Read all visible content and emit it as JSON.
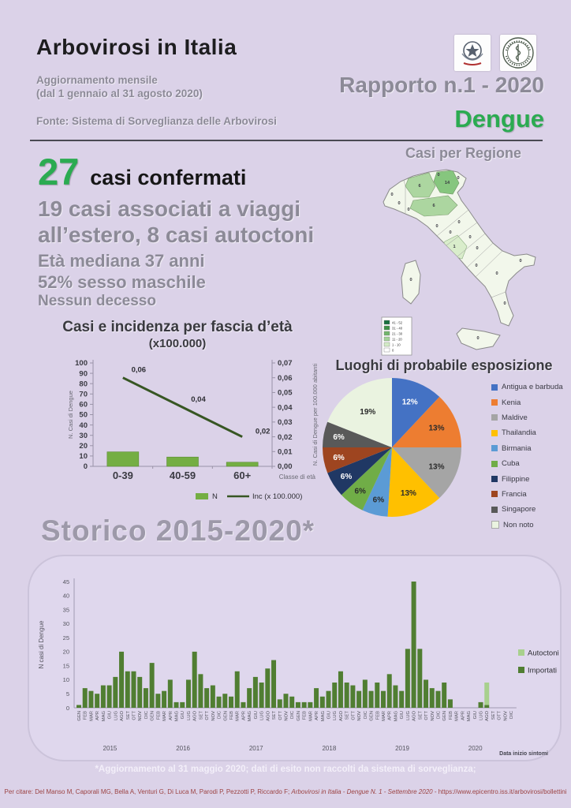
{
  "colors": {
    "background": "#DBD2E8",
    "accent_green": "#2BAB51",
    "gray_text": "#8C8A97",
    "dark_text": "#1D1D1F",
    "age_bar_green": "#74AE43",
    "incidence_line": "#375623",
    "importati_green": "#507E32",
    "autoctoni_green": "#A8D08D",
    "citation_red": "#9C4343"
  },
  "header": {
    "title": "Arbovirosi in Italia",
    "subtitle_line1": "Aggiornamento mensile",
    "subtitle_line2": "(dal 1 gennaio al 31 agosto 2020)",
    "fonte": "Fonte: Sistema di Sorveglianza delle Arbovirosi",
    "report_no": "Rapporto n.1 - 2020",
    "disease": "Dengue",
    "logos": [
      "Ministero della Salute",
      "Istituto Superiore di Sanità"
    ]
  },
  "summary": {
    "confirmed_count": "27",
    "confirmed_label": "casi confermati",
    "detail": "19 casi associati a viaggi all’estero, 8 casi autoctoni",
    "median_age": "Età mediana 37 anni",
    "sex": "52% sesso maschile",
    "deaths": "Nessun decesso"
  },
  "map": {
    "title": "Casi per Regione",
    "regions": [
      {
        "name": "Valle d'Aosta",
        "value": 0
      },
      {
        "name": "Piemonte",
        "value": 0
      },
      {
        "name": "Lombardia",
        "value": 6
      },
      {
        "name": "Trentino-Alto Adige",
        "value": 0
      },
      {
        "name": "Veneto",
        "value": 14
      },
      {
        "name": "Friuli-Venezia Giulia",
        "value": 0
      },
      {
        "name": "Liguria",
        "value": 0
      },
      {
        "name": "Emilia-Romagna",
        "value": 6
      },
      {
        "name": "Toscana",
        "value": 0
      },
      {
        "name": "Umbria",
        "value": 0
      },
      {
        "name": "Marche",
        "value": 0
      },
      {
        "name": "Lazio",
        "value": 1
      },
      {
        "name": "Abruzzo",
        "value": 0
      },
      {
        "name": "Molise",
        "value": 0
      },
      {
        "name": "Campania",
        "value": 0
      },
      {
        "name": "Puglia",
        "value": 0
      },
      {
        "name": "Basilicata",
        "value": 0
      },
      {
        "name": "Calabria",
        "value": 0
      },
      {
        "name": "Sicilia",
        "value": 0
      },
      {
        "name": "Sardegna",
        "value": 0
      }
    ],
    "legend": [
      {
        "label": "41 - 52",
        "color": "#17703E"
      },
      {
        "label": "31 - 40",
        "color": "#3D9246"
      },
      {
        "label": "21 - 30",
        "color": "#71B56B"
      },
      {
        "label": "11 - 20",
        "color": "#A3D398"
      },
      {
        "label": "1 - 10",
        "color": "#D3EBC6"
      },
      {
        "label": "0",
        "color": "#FFFFFF"
      }
    ]
  },
  "chart_data": [
    {
      "id": "age_incidence",
      "type": "bar",
      "title": "Casi e incidenza per fascia d’età",
      "subtitle": "(x100.000)",
      "categories": [
        "0-39",
        "40-59",
        "60+"
      ],
      "series": [
        {
          "name": "N",
          "kind": "bar",
          "axis": "left",
          "color": "#74AE43",
          "values": [
            14,
            9,
            4
          ]
        },
        {
          "name": "Inc (x 100.000)",
          "kind": "line",
          "axis": "right",
          "color": "#375623",
          "values": [
            0.06,
            0.04,
            0.02
          ],
          "point_labels": [
            "0,06",
            "0,04",
            "0,02"
          ]
        }
      ],
      "xlabel": "Classe di età",
      "ylabel_left": "N. Casi di Dengue",
      "ylabel_right": "N. Casi di Dengue per 100.000 abitanti",
      "ylim_left": [
        0,
        100
      ],
      "ytick_step_left": 10,
      "ylim_right": [
        0,
        0.07
      ],
      "ytick_labels_right": [
        "0,00",
        "0,01",
        "0,02",
        "0,03",
        "0,04",
        "0,05",
        "0,06",
        "0,07"
      ],
      "legend_position": "bottom"
    },
    {
      "id": "exposure",
      "type": "pie",
      "title": "Luoghi di probabile esposizione",
      "slices": [
        {
          "label": "Antigua e barbuda",
          "pct": 12,
          "color": "#4472C4",
          "label_color": "#FFFFFF"
        },
        {
          "label": "Kenia",
          "pct": 13,
          "color": "#ED7D31",
          "label_color": "#2b2b2b"
        },
        {
          "label": "Maldive",
          "pct": 13,
          "color": "#A5A5A5",
          "label_color": "#2b2b2b"
        },
        {
          "label": "Thailandia",
          "pct": 13,
          "color": "#FFC000",
          "label_color": "#2b2b2b"
        },
        {
          "label": "Birmania",
          "pct": 6,
          "color": "#5B9BD5",
          "label_color": "#2b2b2b"
        },
        {
          "label": "Cuba",
          "pct": 6,
          "color": "#70AD47",
          "label_color": "#2b2b2b"
        },
        {
          "label": "Filippine",
          "pct": 6,
          "color": "#203864",
          "label_color": "#FFFFFF"
        },
        {
          "label": "Francia",
          "pct": 6,
          "color": "#9E4520",
          "label_color": "#FFFFFF"
        },
        {
          "label": "Singapore",
          "pct": 6,
          "color": "#595959",
          "label_color": "#FFFFFF"
        },
        {
          "label": "Non noto",
          "pct": 19,
          "color": "#EAF3E0",
          "label_color": "#2b2b2b"
        }
      ],
      "legend_position": "right"
    },
    {
      "id": "storico",
      "type": "stacked-bar",
      "title": "Storico 2015-2020*",
      "ylabel": "N casi di Dengue",
      "xlabel": "Data inizio sintomi",
      "ylim": [
        0,
        45
      ],
      "ytick_step": 5,
      "months": [
        "GEN",
        "FEB",
        "MAR",
        "APR",
        "MAG",
        "GIU",
        "LUG",
        "AGO",
        "SET",
        "OTT",
        "NOV",
        "DIC"
      ],
      "years": [
        "2015",
        "2016",
        "2017",
        "2018",
        "2019",
        "2020"
      ],
      "series": [
        {
          "name": "Importati",
          "color": "#507E32",
          "values": [
            1,
            7,
            6,
            5,
            8,
            8,
            11,
            20,
            13,
            13,
            11,
            7,
            16,
            5,
            6,
            10,
            2,
            2,
            10,
            20,
            12,
            7,
            8,
            4,
            5,
            4,
            13,
            2,
            7,
            11,
            9,
            14,
            17,
            3,
            5,
            4,
            2,
            2,
            2,
            7,
            4,
            6,
            9,
            13,
            9,
            8,
            6,
            10,
            6,
            9,
            6,
            12,
            8,
            6,
            21,
            45,
            21,
            10,
            7,
            6,
            9,
            3,
            0,
            0,
            0,
            0,
            2,
            1,
            0,
            0,
            0,
            0
          ]
        },
        {
          "name": "Autoctoni",
          "color": "#A8D08D",
          "values": [
            0,
            0,
            0,
            0,
            0,
            0,
            0,
            0,
            0,
            0,
            0,
            0,
            0,
            0,
            0,
            0,
            0,
            0,
            0,
            0,
            0,
            0,
            0,
            0,
            0,
            0,
            0,
            0,
            0,
            0,
            0,
            0,
            0,
            0,
            0,
            0,
            0,
            0,
            0,
            0,
            0,
            0,
            0,
            0,
            0,
            0,
            0,
            0,
            0,
            0,
            0,
            0,
            0,
            0,
            0,
            0,
            0,
            0,
            0,
            0,
            0,
            0,
            0,
            0,
            0,
            0,
            0,
            8,
            0,
            0,
            0,
            0
          ]
        }
      ],
      "legend": [
        "Autoctoni",
        "Importati"
      ]
    }
  ],
  "footer": {
    "footnote": "*Aggiornamento al 31 maggio 2020; dati di esito non raccolti da sistema di sorveglianza;",
    "citation_prefix": "Per citare:  Del Manso M, Caporali MG, Bella A, Venturi G, Di Luca M, Parodi P, Pezzotti P, Riccardo F; ",
    "citation_italic": "Arbovirosi in Italia - Dengue N. 1 - Settembre 2020",
    "citation_suffix": " - https://www.epicentro.iss.it/arbovirosi/bollettini"
  }
}
